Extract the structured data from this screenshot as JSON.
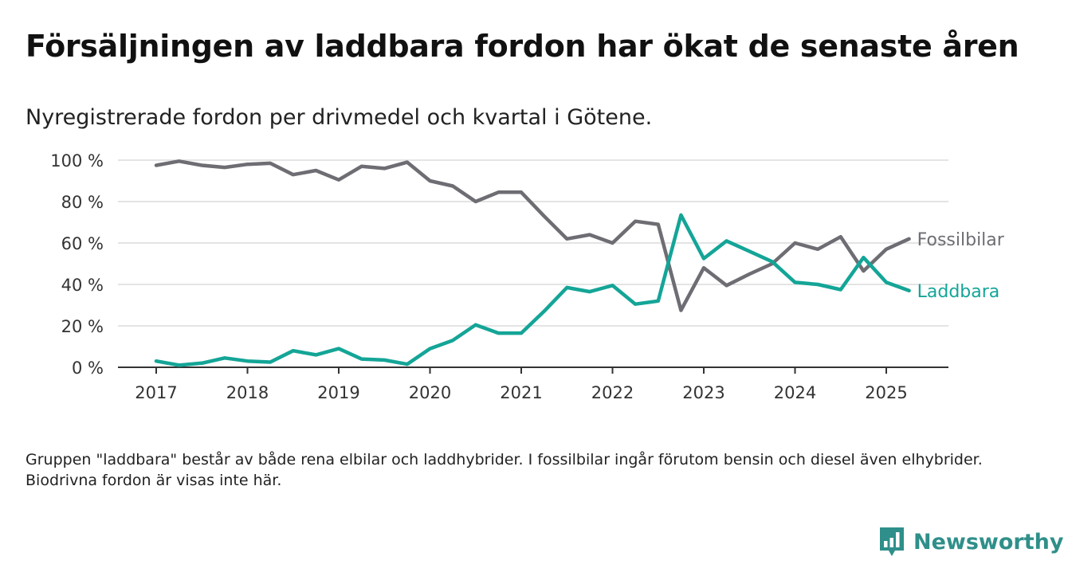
{
  "title": "Försäljningen av laddbara fordon har ökat de senaste åren",
  "subtitle": "Nyregistrerade fordon per drivmedel och kvartal i Götene.",
  "note": "Gruppen \"laddbara\" består av både rena elbilar och laddhybrider. I fossilbilar ingår förutom bensin och diesel även elhybrider. Biodrivna fordon är visas inte här.",
  "brand": {
    "name": "Newsworthy",
    "icon": "bar-chart-icon",
    "color": "#2f8f8a"
  },
  "chart_data": {
    "type": "line",
    "x_start": "2017 Q1",
    "x_tick_labels": [
      "2017",
      "2018",
      "2019",
      "2020",
      "2021",
      "2022",
      "2023",
      "2024",
      "2025"
    ],
    "y_tick_labels": [
      "0 %",
      "20 %",
      "40 %",
      "60 %",
      "80 %",
      "100 %"
    ],
    "ylim": [
      0,
      100
    ],
    "grid": true,
    "series": [
      {
        "name": "Fossilbilar",
        "color": "#6e6d73",
        "values": [
          97.5,
          99.5,
          97.5,
          96.5,
          98,
          98.5,
          93,
          95,
          90.5,
          97,
          96,
          99,
          90,
          87.5,
          80,
          84.5,
          84.5,
          73,
          62,
          64,
          60,
          70.5,
          69,
          27.5,
          48,
          39.5,
          45,
          50,
          60,
          57,
          63,
          46.5,
          57,
          62
        ]
      },
      {
        "name": "Laddbara",
        "color": "#14a597",
        "values": [
          3,
          1,
          2,
          4.5,
          3,
          2.5,
          8,
          6,
          9,
          4,
          3.5,
          1.5,
          9,
          13,
          20.5,
          16.5,
          16.5,
          27,
          38.5,
          36.5,
          39.5,
          30.5,
          32,
          73.5,
          52.5,
          61,
          56,
          51,
          41,
          40,
          37.5,
          53,
          41,
          37
        ]
      }
    ]
  }
}
